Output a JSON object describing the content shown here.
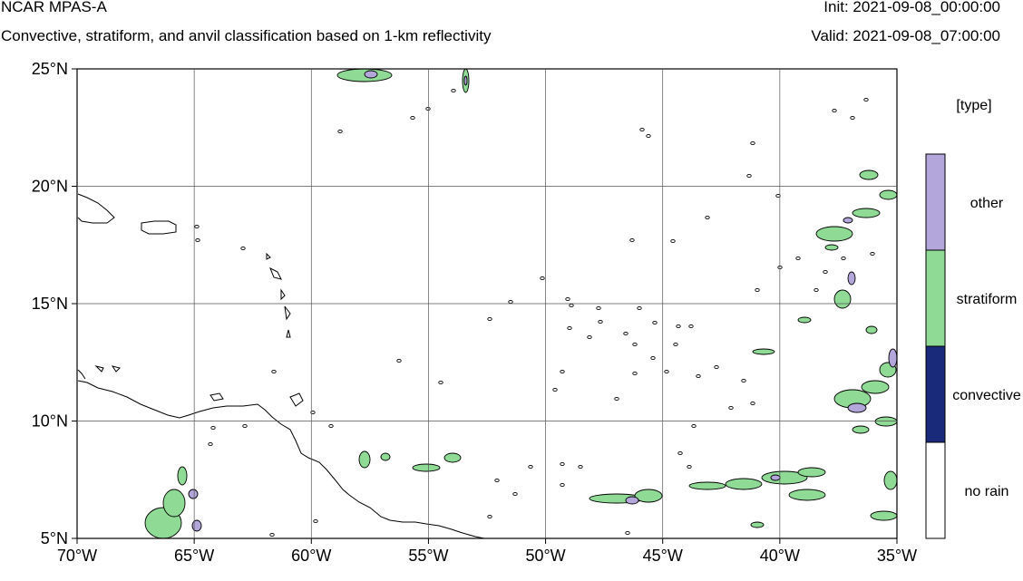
{
  "header": {
    "model": "NCAR MPAS-A",
    "description": "Convective, stratiform, and anvil classification based on 1-km reflectivity",
    "init": "Init: 2021-09-08_00:00:00",
    "valid": "Valid: 2021-09-08_07:00:00"
  },
  "axes": {
    "lon_labels": [
      "70°W",
      "65°W",
      "60°W",
      "55°W",
      "50°W",
      "45°W",
      "40°W",
      "35°W"
    ],
    "lat_labels": [
      "25°N",
      "20°N",
      "15°N",
      "10°N",
      "5°N"
    ],
    "lon_range": [
      -70,
      -35
    ],
    "lat_range": [
      5,
      25
    ],
    "gridlines": true
  },
  "legend": {
    "title": "[type]",
    "items": [
      {
        "label": "other",
        "color": "#b3a6da"
      },
      {
        "label": "stratiform",
        "color": "#8fda95"
      },
      {
        "label": "convective",
        "color": "#1a2a7a"
      },
      {
        "label": "no rain",
        "color": "#ffffff"
      }
    ]
  },
  "colors": {
    "coastline": "#000000",
    "grid": "#555555",
    "stratiform": "#8fda95",
    "other": "#b3a6da",
    "convective": "#1a2a7a"
  }
}
